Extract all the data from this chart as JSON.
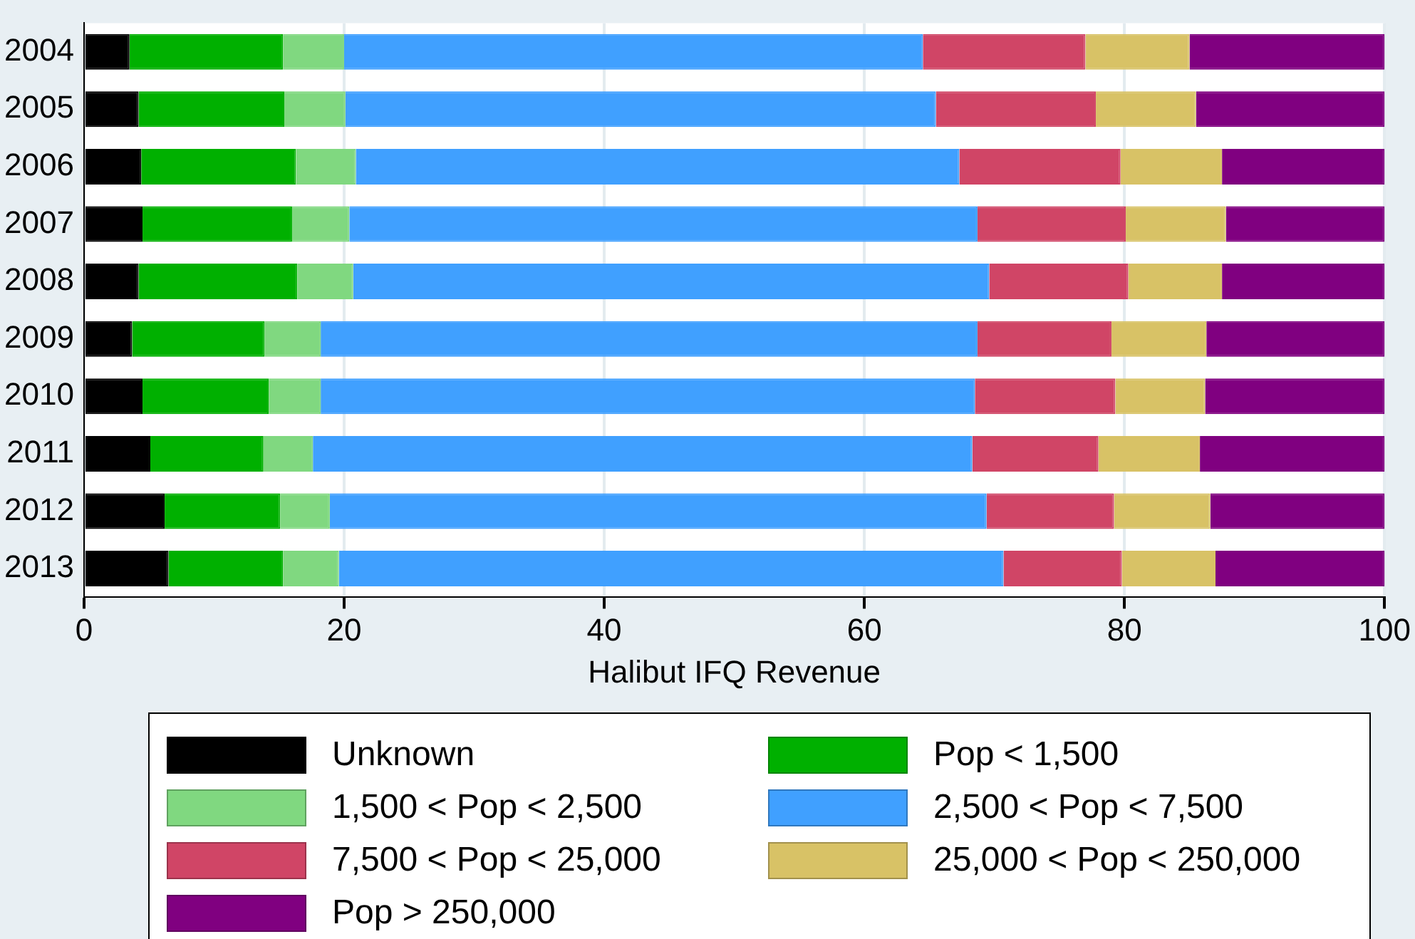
{
  "chart_data": {
    "type": "bar",
    "orientation": "horizontal",
    "stacked": true,
    "categories": [
      "2004",
      "2005",
      "2006",
      "2007",
      "2008",
      "2009",
      "2010",
      "2011",
      "2012",
      "2013"
    ],
    "xlabel": "Halibut IFQ Revenue",
    "xlim": [
      0,
      100
    ],
    "xticks": [
      0,
      20,
      40,
      60,
      80,
      100
    ],
    "grid": "x",
    "legend": "bottom",
    "series": [
      {
        "name": "Unknown",
        "color": "#000000",
        "values": [
          3.5,
          4.2,
          4.4,
          4.5,
          4.2,
          3.7,
          4.5,
          5.1,
          6.2,
          6.5
        ]
      },
      {
        "name": "Pop < 1,500",
        "color": "#00b000",
        "values": [
          11.8,
          11.2,
          11.9,
          11.5,
          12.2,
          10.2,
          9.7,
          8.7,
          8.9,
          8.8
        ]
      },
      {
        "name": "1,500 < Pop < 2,500",
        "color": "#80d880",
        "values": [
          4.7,
          4.7,
          4.6,
          4.4,
          4.3,
          4.3,
          4.0,
          3.8,
          3.8,
          4.3
        ]
      },
      {
        "name": "2,500 < Pop < 7,500",
        "color": "#40a0ff",
        "values": [
          44.5,
          45.4,
          46.4,
          48.3,
          48.9,
          50.5,
          50.3,
          50.7,
          50.5,
          51.1
        ]
      },
      {
        "name": "7,500 < Pop < 25,000",
        "color": "#d04566",
        "values": [
          12.5,
          12.3,
          12.4,
          11.4,
          10.7,
          10.3,
          10.8,
          9.7,
          9.8,
          9.1
        ]
      },
      {
        "name": "25,000 < Pop < 250,000",
        "color": "#d8c266",
        "values": [
          8.0,
          7.7,
          7.8,
          7.7,
          7.2,
          7.3,
          6.9,
          7.8,
          7.4,
          7.2
        ]
      },
      {
        "name": "Pop > 250,000",
        "color": "#800080",
        "values": [
          15.0,
          14.5,
          12.5,
          12.2,
          12.5,
          13.7,
          13.8,
          14.2,
          13.4,
          13.0
        ]
      }
    ]
  }
}
